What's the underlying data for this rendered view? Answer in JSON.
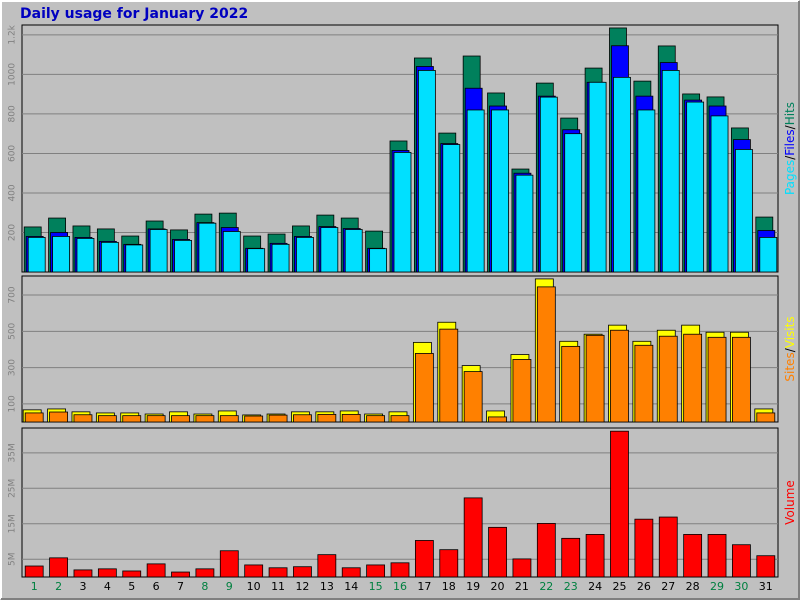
{
  "title": "Daily usage for January 2022",
  "chart_data": [
    {
      "type": "bar",
      "legend_separator": "/",
      "grid": true,
      "ylim": [
        0,
        1250
      ],
      "yticks": [
        200,
        400,
        600,
        800,
        1000,
        {
          "value": 1200,
          "label": "1.2k"
        }
      ],
      "series": [
        {
          "name": "Hits",
          "color": "#00805c",
          "values": [
            228,
            273,
            233,
            218,
            182,
            258,
            213,
            293,
            298,
            182,
            192,
            233,
            288,
            273,
            207,
            663,
            1083,
            703,
            1093,
            906,
            521,
            956,
            779,
            1032,
            1235,
            966,
            1144,
            901,
            886,
            729,
            278
          ]
        },
        {
          "name": "Files",
          "color": "#0000ff",
          "values": [
            180,
            200,
            175,
            155,
            140,
            218,
            165,
            250,
            225,
            120,
            145,
            180,
            230,
            220,
            120,
            615,
            1040,
            650,
            930,
            840,
            500,
            890,
            720,
            960,
            1145,
            890,
            1060,
            870,
            840,
            670,
            210
          ]
        },
        {
          "name": "Pages",
          "color": "#00e0ff",
          "values": [
            175,
            180,
            170,
            150,
            137,
            215,
            160,
            247,
            205,
            118,
            140,
            175,
            225,
            215,
            118,
            605,
            1020,
            645,
            820,
            820,
            490,
            885,
            700,
            960,
            985,
            820,
            1020,
            860,
            790,
            620,
            175
          ]
        }
      ]
    },
    {
      "type": "bar",
      "legend_separator": "/",
      "grid": true,
      "ylim": [
        0,
        805
      ],
      "yticks": [
        100,
        300,
        500,
        700
      ],
      "series": [
        {
          "name": "Visits",
          "color": "#ffff00",
          "values": [
            67,
            72,
            56,
            50,
            50,
            44,
            56,
            44,
            61,
            39,
            44,
            56,
            56,
            61,
            44,
            56,
            439,
            550,
            311,
            61,
            372,
            789,
            445,
            484,
            534,
            445,
            506,
            534,
            495,
            495,
            72
          ]
        },
        {
          "name": "Sites",
          "color": "#ff8000",
          "values": [
            50,
            55,
            40,
            35,
            35,
            35,
            35,
            35,
            35,
            33,
            38,
            40,
            42,
            42,
            35,
            35,
            378,
            512,
            278,
            28,
            345,
            745,
            417,
            478,
            506,
            423,
            473,
            484,
            467,
            467,
            50
          ]
        }
      ]
    },
    {
      "type": "bar",
      "grid": true,
      "ylim": [
        0,
        42
      ],
      "yticks": [
        {
          "value": 5,
          "label": "5M"
        },
        {
          "value": 15,
          "label": "15M"
        },
        {
          "value": 25,
          "label": "25M"
        },
        {
          "value": 35,
          "label": "35M"
        }
      ],
      "categories": [
        "1",
        "2",
        "3",
        "4",
        "5",
        "6",
        "7",
        "8",
        "9",
        "10",
        "11",
        "12",
        "13",
        "14",
        "15",
        "16",
        "17",
        "18",
        "19",
        "20",
        "21",
        "22",
        "23",
        "24",
        "25",
        "26",
        "27",
        "28",
        "29",
        "30",
        "31"
      ],
      "category_colors": [
        "#008040",
        "#008040",
        "#000000",
        "#000000",
        "#000000",
        "#000000",
        "#000000",
        "#008040",
        "#008040",
        "#000000",
        "#000000",
        "#000000",
        "#000000",
        "#000000",
        "#008040",
        "#008040",
        "#000000",
        "#000000",
        "#000000",
        "#000000",
        "#000000",
        "#008040",
        "#008040",
        "#000000",
        "#000000",
        "#000000",
        "#000000",
        "#000000",
        "#008040",
        "#008040",
        "#000000"
      ],
      "series": [
        {
          "name": "Volume",
          "color": "#ff0000",
          "values": [
            3.1,
            5.4,
            2.0,
            2.3,
            1.7,
            3.7,
            1.4,
            2.3,
            7.4,
            3.4,
            2.6,
            2.9,
            6.3,
            2.6,
            3.4,
            4.0,
            10.3,
            7.7,
            22.3,
            14.0,
            5.1,
            15.1,
            10.9,
            12.0,
            41.1,
            16.3,
            16.9,
            12.0,
            12.0,
            9.1,
            6.0
          ]
        }
      ]
    }
  ]
}
